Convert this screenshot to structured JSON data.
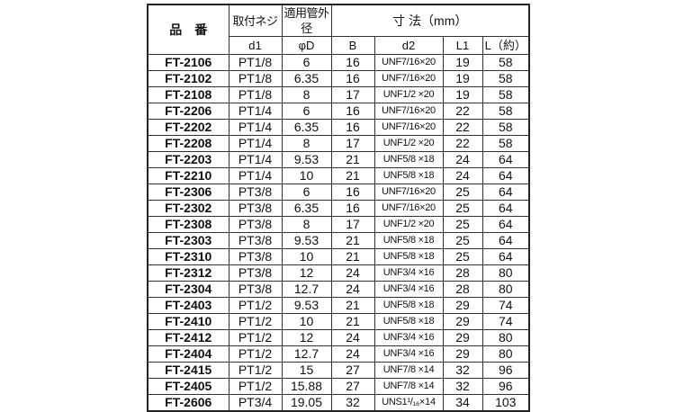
{
  "header": {
    "part_no": "品　番",
    "thread": "取付ネジ",
    "tube_od": "適用管外径",
    "dimensions": "寸 法（mm）",
    "d1": "d1",
    "phiD": "φD",
    "B": "B",
    "d2": "d2",
    "L1": "L1",
    "L": "L（約）"
  },
  "rows": [
    [
      "FT-2106",
      "PT1/8",
      "6",
      "16",
      "UNF7/16×20",
      "19",
      "58"
    ],
    [
      "FT-2102",
      "PT1/8",
      "6.35",
      "16",
      "UNF7/16×20",
      "19",
      "58"
    ],
    [
      "FT-2108",
      "PT1/8",
      "8",
      "17",
      "UNF1/2 ×20",
      "19",
      "58"
    ],
    [
      "FT-2206",
      "PT1/4",
      "6",
      "16",
      "UNF7/16×20",
      "22",
      "58"
    ],
    [
      "FT-2202",
      "PT1/4",
      "6.35",
      "16",
      "UNF7/16×20",
      "22",
      "58"
    ],
    [
      "FT-2208",
      "PT1/4",
      "8",
      "17",
      "UNF1/2 ×20",
      "22",
      "58"
    ],
    [
      "FT-2203",
      "PT1/4",
      "9.53",
      "21",
      "UNF5/8 ×18",
      "24",
      "64"
    ],
    [
      "FT-2210",
      "PT1/4",
      "10",
      "21",
      "UNF5/8 ×18",
      "24",
      "64"
    ],
    [
      "FT-2306",
      "PT3/8",
      "6",
      "16",
      "UNF7/16×20",
      "25",
      "64"
    ],
    [
      "FT-2302",
      "PT3/8",
      "6.35",
      "16",
      "UNF7/16×20",
      "25",
      "64"
    ],
    [
      "FT-2308",
      "PT3/8",
      "8",
      "17",
      "UNF1/2 ×20",
      "25",
      "64"
    ],
    [
      "FT-2303",
      "PT3/8",
      "9.53",
      "21",
      "UNF5/8 ×18",
      "25",
      "64"
    ],
    [
      "FT-2310",
      "PT3/8",
      "10",
      "21",
      "UNF5/8 ×18",
      "25",
      "64"
    ],
    [
      "FT-2312",
      "PT3/8",
      "12",
      "24",
      "UNF3/4 ×16",
      "28",
      "80"
    ],
    [
      "FT-2304",
      "PT3/8",
      "12.7",
      "24",
      "UNF3/4 ×16",
      "28",
      "80"
    ],
    [
      "FT-2403",
      "PT1/2",
      "9.53",
      "21",
      "UNF5/8 ×18",
      "29",
      "74"
    ],
    [
      "FT-2410",
      "PT1/2",
      "10",
      "21",
      "UNF5/8 ×18",
      "29",
      "74"
    ],
    [
      "FT-2412",
      "PT1/2",
      "12",
      "24",
      "UNF3/4 ×16",
      "29",
      "80"
    ],
    [
      "FT-2404",
      "PT1/2",
      "12.7",
      "24",
      "UNF3/4 ×16",
      "29",
      "80"
    ],
    [
      "FT-2415",
      "PT1/2",
      "15",
      "27",
      "UNF7/8 ×14",
      "32",
      "96"
    ],
    [
      "FT-2405",
      "PT1/2",
      "15.88",
      "27",
      "UNF7/8 ×14",
      "32",
      "96"
    ],
    [
      "FT-2606",
      "PT3/4",
      "19.05",
      "32",
      "UNS1¹/₁₆×14",
      "34",
      "103"
    ]
  ]
}
